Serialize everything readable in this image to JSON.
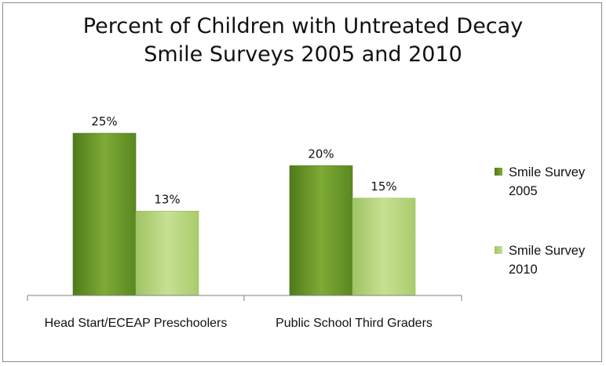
{
  "chart_data": {
    "type": "bar",
    "title_lines": [
      "Percent of Children with Untreated Decay",
      "Smile Surveys 2005 and 2010"
    ],
    "categories": [
      "Head Start/ECEAP Preschoolers",
      "Public School Third Graders"
    ],
    "series": [
      {
        "name_lines": [
          "Smile Survey",
          "2005"
        ],
        "values": [
          25,
          20
        ],
        "labels": [
          "25%",
          "20%"
        ],
        "color": "#6f9a2a"
      },
      {
        "name_lines": [
          "Smile Survey",
          "2010"
        ],
        "values": [
          13,
          15
        ],
        "labels": [
          "13%",
          "15%"
        ],
        "color": "#b8d67e"
      }
    ],
    "ylim": [
      0,
      30
    ],
    "grid": false,
    "legend_position": "right"
  }
}
